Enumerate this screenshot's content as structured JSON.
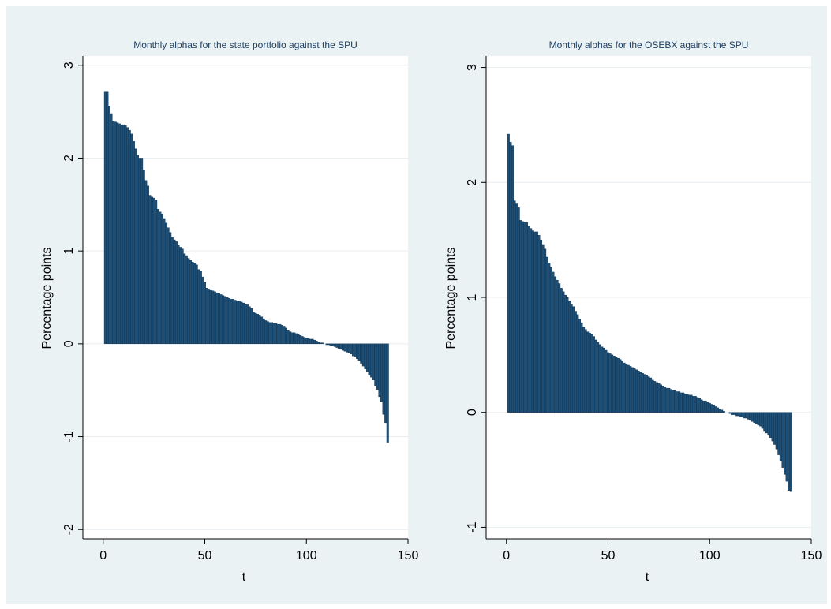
{
  "colors": {
    "outer_background": "#eaf2f3",
    "plot_background": "#ffffff",
    "bar_fill": "#1e4f77",
    "bar_edge": "#0f2e48",
    "grid": "#e8eef0",
    "title": "#1e3f66",
    "axis": "#000000"
  },
  "chart_data": [
    {
      "type": "bar",
      "title": "Monthly alphas for the state portfolio against the SPU",
      "xlabel": "t",
      "ylabel": "Percentage points",
      "xlim": [
        -10,
        150
      ],
      "ylim": [
        -2.1,
        3.1
      ],
      "x_ticks": [
        0,
        50,
        100,
        150
      ],
      "y_ticks": [
        -2,
        -1,
        0,
        1,
        2,
        3
      ],
      "x_tick_labels": [
        "0",
        "50",
        "100",
        "150"
      ],
      "y_tick_labels": [
        "-2",
        "-1",
        "0",
        "1",
        "2",
        "3"
      ],
      "grid": "horizontal",
      "x": [
        1,
        2,
        3,
        4,
        5,
        6,
        7,
        8,
        9,
        10,
        11,
        12,
        13,
        14,
        15,
        16,
        17,
        18,
        19,
        20,
        21,
        22,
        23,
        24,
        25,
        26,
        27,
        28,
        29,
        30,
        31,
        32,
        33,
        34,
        35,
        36,
        37,
        38,
        39,
        40,
        41,
        42,
        43,
        44,
        45,
        46,
        47,
        48,
        49,
        50,
        51,
        52,
        53,
        54,
        55,
        56,
        57,
        58,
        59,
        60,
        61,
        62,
        63,
        64,
        65,
        66,
        67,
        68,
        69,
        70,
        71,
        72,
        73,
        74,
        75,
        76,
        77,
        78,
        79,
        80,
        81,
        82,
        83,
        84,
        85,
        86,
        87,
        88,
        89,
        90,
        91,
        92,
        93,
        94,
        95,
        96,
        97,
        98,
        99,
        100,
        101,
        102,
        103,
        104,
        105,
        106,
        107,
        108,
        109,
        110,
        111,
        112,
        113,
        114,
        115,
        116,
        117,
        118,
        119,
        120,
        121,
        122,
        123,
        124,
        125,
        126,
        127,
        128,
        129,
        130,
        131,
        132,
        133,
        134,
        135,
        136,
        137,
        138,
        139,
        140
      ],
      "values": [
        2.72,
        2.72,
        2.56,
        2.48,
        2.4,
        2.39,
        2.38,
        2.37,
        2.36,
        2.36,
        2.35,
        2.33,
        2.3,
        2.26,
        2.18,
        2.1,
        2.03,
        2.0,
        2.0,
        1.87,
        1.76,
        1.7,
        1.6,
        1.58,
        1.57,
        1.55,
        1.45,
        1.42,
        1.4,
        1.35,
        1.3,
        1.25,
        1.2,
        1.15,
        1.12,
        1.1,
        1.06,
        1.04,
        1.02,
        0.97,
        0.95,
        0.92,
        0.9,
        0.88,
        0.87,
        0.85,
        0.8,
        0.78,
        0.72,
        0.66,
        0.6,
        0.59,
        0.58,
        0.57,
        0.56,
        0.55,
        0.54,
        0.53,
        0.52,
        0.51,
        0.5,
        0.49,
        0.48,
        0.48,
        0.47,
        0.46,
        0.46,
        0.45,
        0.44,
        0.43,
        0.42,
        0.4,
        0.38,
        0.34,
        0.33,
        0.32,
        0.31,
        0.29,
        0.27,
        0.25,
        0.24,
        0.23,
        0.23,
        0.22,
        0.22,
        0.21,
        0.21,
        0.2,
        0.19,
        0.17,
        0.15,
        0.13,
        0.12,
        0.12,
        0.11,
        0.1,
        0.09,
        0.08,
        0.07,
        0.06,
        0.06,
        0.05,
        0.05,
        0.04,
        0.03,
        0.02,
        0.01,
        0.01,
        0.0,
        -0.01,
        -0.01,
        -0.02,
        -0.02,
        -0.03,
        -0.04,
        -0.05,
        -0.06,
        -0.07,
        -0.08,
        -0.09,
        -0.1,
        -0.11,
        -0.13,
        -0.14,
        -0.16,
        -0.18,
        -0.21,
        -0.24,
        -0.27,
        -0.3,
        -0.34,
        -0.36,
        -0.39,
        -0.45,
        -0.5,
        -0.57,
        -0.62,
        -0.76,
        -0.85,
        -1.06
      ]
    },
    {
      "type": "bar",
      "title": "Monthly alphas for the OSEBX against the SPU",
      "xlabel": "t",
      "ylabel": "Percentage points",
      "xlim": [
        -10,
        150
      ],
      "ylim": [
        -1.1,
        3.1
      ],
      "x_ticks": [
        0,
        50,
        100,
        150
      ],
      "y_ticks": [
        -1,
        0,
        1,
        2,
        3
      ],
      "x_tick_labels": [
        "0",
        "50",
        "100",
        "150"
      ],
      "y_tick_labels": [
        "-1",
        "0",
        "1",
        "2",
        "3"
      ],
      "grid": "horizontal",
      "x": [
        1,
        2,
        3,
        4,
        5,
        6,
        7,
        8,
        9,
        10,
        11,
        12,
        13,
        14,
        15,
        16,
        17,
        18,
        19,
        20,
        21,
        22,
        23,
        24,
        25,
        26,
        27,
        28,
        29,
        30,
        31,
        32,
        33,
        34,
        35,
        36,
        37,
        38,
        39,
        40,
        41,
        42,
        43,
        44,
        45,
        46,
        47,
        48,
        49,
        50,
        51,
        52,
        53,
        54,
        55,
        56,
        57,
        58,
        59,
        60,
        61,
        62,
        63,
        64,
        65,
        66,
        67,
        68,
        69,
        70,
        71,
        72,
        73,
        74,
        75,
        76,
        77,
        78,
        79,
        80,
        81,
        82,
        83,
        84,
        85,
        86,
        87,
        88,
        89,
        90,
        91,
        92,
        93,
        94,
        95,
        96,
        97,
        98,
        99,
        100,
        101,
        102,
        103,
        104,
        105,
        106,
        107,
        108,
        109,
        110,
        111,
        112,
        113,
        114,
        115,
        116,
        117,
        118,
        119,
        120,
        121,
        122,
        123,
        124,
        125,
        126,
        127,
        128,
        129,
        130,
        131,
        132,
        133,
        134,
        135,
        136,
        137,
        138,
        139,
        140
      ],
      "values": [
        2.42,
        2.35,
        2.32,
        1.84,
        1.82,
        1.78,
        1.67,
        1.66,
        1.65,
        1.65,
        1.62,
        1.6,
        1.58,
        1.57,
        1.57,
        1.54,
        1.5,
        1.46,
        1.42,
        1.35,
        1.3,
        1.26,
        1.22,
        1.18,
        1.15,
        1.12,
        1.08,
        1.05,
        1.02,
        1.0,
        0.97,
        0.94,
        0.92,
        0.88,
        0.85,
        0.81,
        0.78,
        0.74,
        0.72,
        0.7,
        0.69,
        0.68,
        0.66,
        0.63,
        0.61,
        0.59,
        0.57,
        0.56,
        0.54,
        0.52,
        0.51,
        0.5,
        0.49,
        0.48,
        0.47,
        0.46,
        0.45,
        0.43,
        0.42,
        0.41,
        0.4,
        0.39,
        0.38,
        0.37,
        0.36,
        0.35,
        0.34,
        0.33,
        0.32,
        0.31,
        0.3,
        0.28,
        0.27,
        0.26,
        0.25,
        0.24,
        0.23,
        0.22,
        0.21,
        0.21,
        0.2,
        0.19,
        0.19,
        0.18,
        0.18,
        0.17,
        0.17,
        0.16,
        0.16,
        0.15,
        0.15,
        0.14,
        0.14,
        0.13,
        0.12,
        0.11,
        0.1,
        0.1,
        0.09,
        0.08,
        0.07,
        0.06,
        0.05,
        0.04,
        0.03,
        0.02,
        0.01,
        0.0,
        0.0,
        -0.01,
        -0.02,
        -0.02,
        -0.03,
        -0.03,
        -0.04,
        -0.04,
        -0.05,
        -0.05,
        -0.06,
        -0.07,
        -0.08,
        -0.09,
        -0.1,
        -0.11,
        -0.12,
        -0.14,
        -0.16,
        -0.18,
        -0.2,
        -0.22,
        -0.25,
        -0.28,
        -0.32,
        -0.37,
        -0.42,
        -0.48,
        -0.54,
        -0.6,
        -0.68,
        -0.69
      ]
    }
  ]
}
